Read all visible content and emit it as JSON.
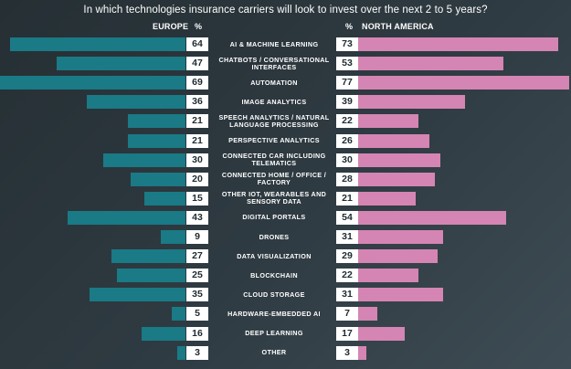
{
  "chart_data": {
    "type": "bar",
    "title": "In which technologies insurance carriers will look to invest over the next 2 to 5 years?",
    "left_header": "EUROPE",
    "right_header": "NORTH AMERICA",
    "unit_label": "%",
    "xlim": [
      0,
      80
    ],
    "colors": {
      "europe": "#1a7a86",
      "north_america": "#d485b3",
      "background": "#2b363c"
    },
    "categories": [
      "AI & MACHINE LEARNING",
      "CHATBOTS / CONVERSATIONAL INTERFACES",
      "AUTOMATION",
      "IMAGE ANALYTICS",
      "SPEECH ANALYTICS / NATURAL LANGUAGE PROCESSING",
      "PERSPECTIVE ANALYTICS",
      "CONNECTED CAR INCLUDING TELEMATICS",
      "CONNECTED HOME / OFFICE / FACTORY",
      "OTHER IOT, WEARABLES AND SENSORY DATA",
      "DIGITAL PORTALS",
      "DRONES",
      "DATA VISUALIZATION",
      "BLOCKCHAIN",
      "CLOUD STORAGE",
      "HARDWARE-EMBEDDED AI",
      "DEEP LEARNING",
      "OTHER"
    ],
    "series": [
      {
        "name": "EUROPE",
        "values": [
          64,
          47,
          69,
          36,
          21,
          21,
          30,
          20,
          15,
          43,
          9,
          27,
          25,
          35,
          5,
          16,
          3
        ]
      },
      {
        "name": "NORTH AMERICA",
        "values": [
          73,
          53,
          77,
          39,
          22,
          26,
          30,
          28,
          21,
          54,
          31,
          29,
          22,
          31,
          7,
          17,
          3
        ]
      }
    ]
  }
}
